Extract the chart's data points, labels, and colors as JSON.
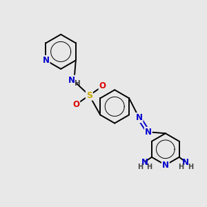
{
  "background_color": "#e8e8e8",
  "bond_color": "#000000",
  "N_color": "#0000cc",
  "S_color": "#ccaa00",
  "O_color": "#dd0000",
  "H_color": "#444444",
  "figsize": [
    3.0,
    3.0
  ],
  "dpi": 100,
  "xlim": [
    0,
    10
  ],
  "ylim": [
    0,
    10
  ],
  "lw": 1.4,
  "font_size": 8.5
}
